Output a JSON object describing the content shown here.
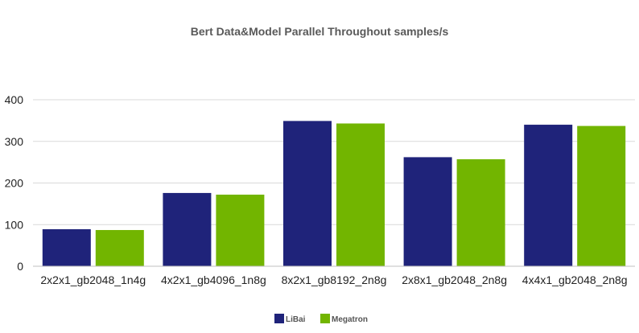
{
  "chart_data": {
    "type": "bar",
    "title": "Bert Data&Model Parallel Throughout samples/s",
    "xlabel": "",
    "ylabel": "",
    "ylim": [
      0,
      400
    ],
    "yticks": [
      0,
      100,
      200,
      300,
      400
    ],
    "grid": true,
    "legend_position": "bottom-center",
    "categories": [
      "2x2x1_gb2048_1n4g",
      "4x2x1_gb4096_1n8g",
      "8x2x1_gb8192_2n8g",
      "2x8x1_gb2048_2n8g",
      "4x4x1_gb2048_2n8g"
    ],
    "series": [
      {
        "name": "LiBai",
        "color": "#1f237a",
        "values": [
          89,
          176,
          349,
          262,
          340
        ]
      },
      {
        "name": "Megatron",
        "color": "#72b500",
        "values": [
          87,
          172,
          343,
          257,
          337
        ]
      }
    ]
  }
}
